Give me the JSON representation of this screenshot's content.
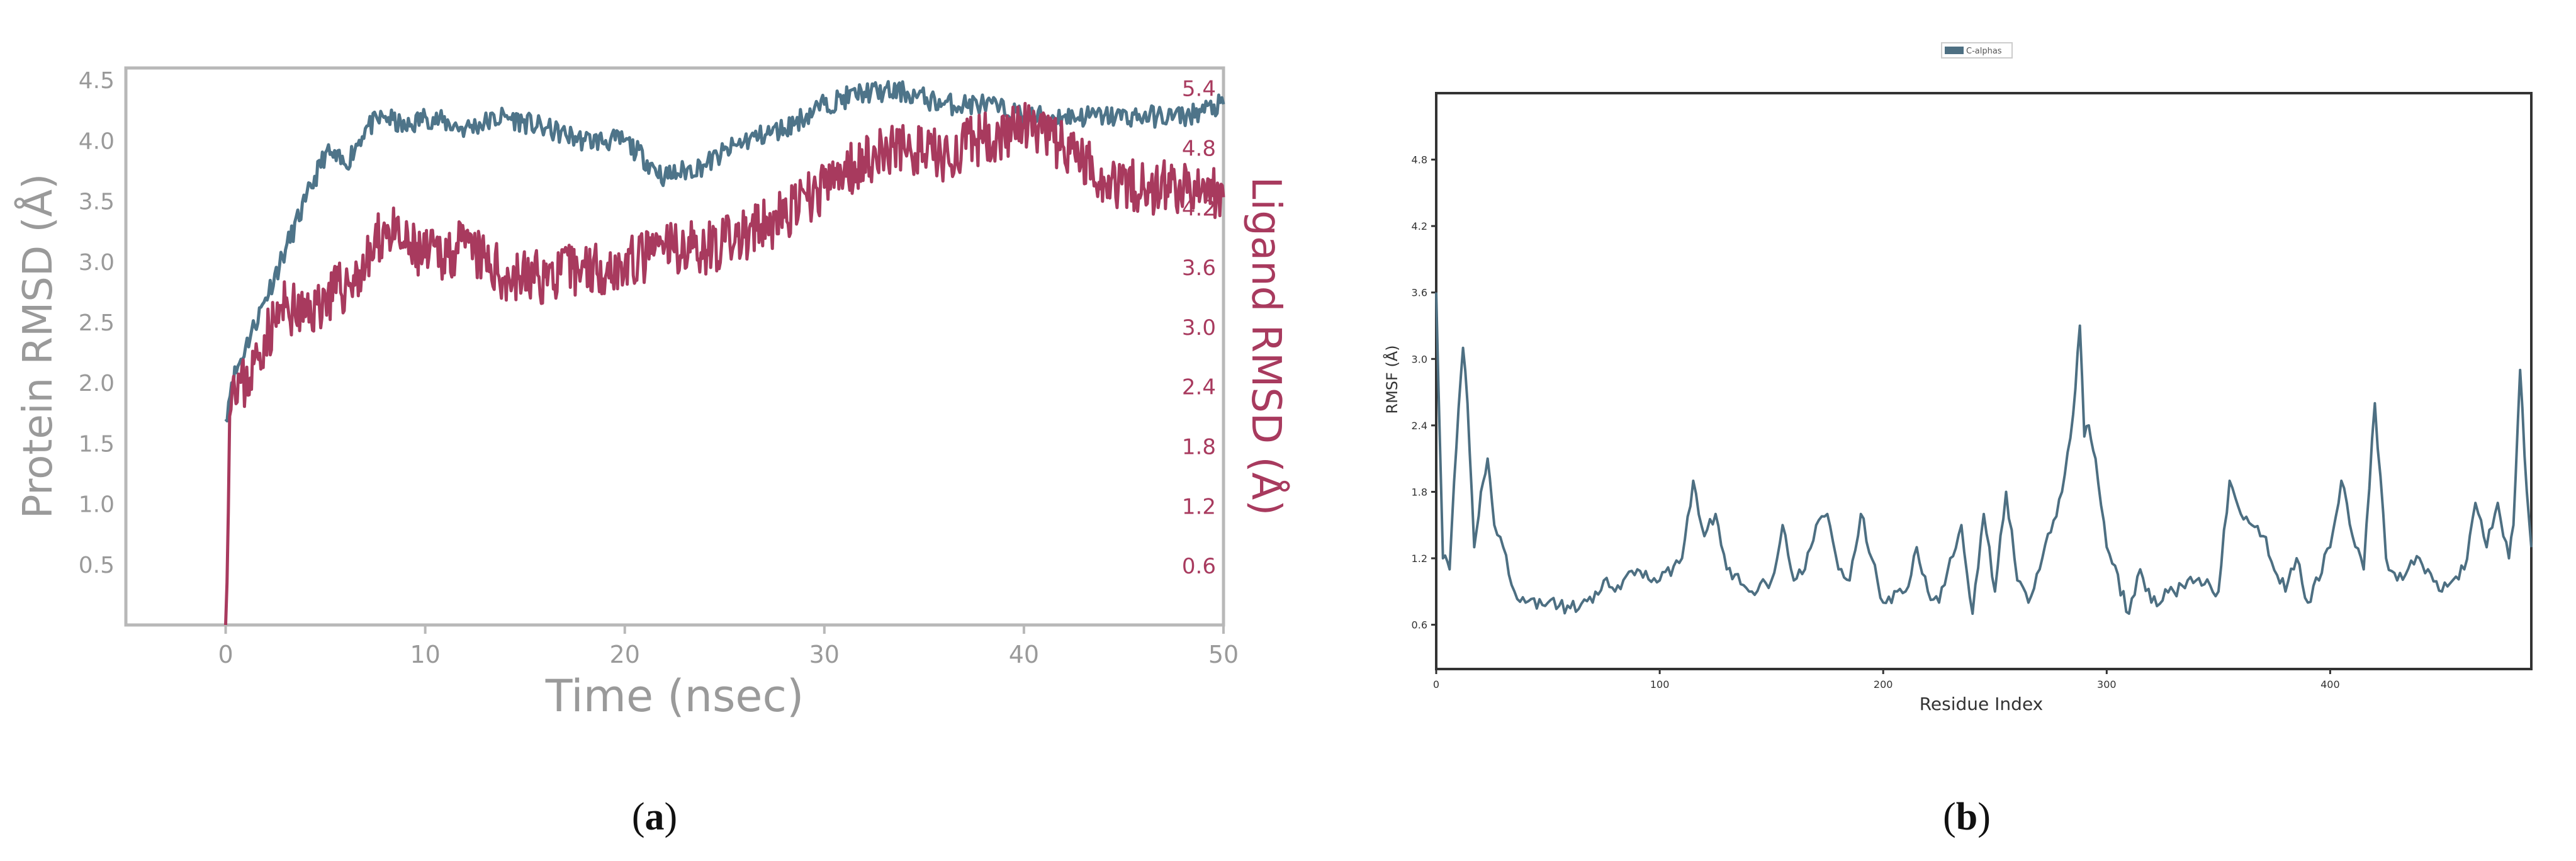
{
  "colors": {
    "protein": "#4e7489",
    "ligand": "#a83a5e",
    "rmsf": "#4d6f82",
    "gray_text": "#9a9a9a",
    "axis": "#b8b8b8",
    "frame": "#333333"
  },
  "panel_a": {
    "label_open": "(",
    "label_letter": "a",
    "label_close": ")"
  },
  "panel_b": {
    "label_open": "(",
    "label_letter": "b",
    "label_close": ")"
  },
  "chart_data": [
    {
      "type": "line",
      "xlabel": "Time (nsec)",
      "ylabel": "Protein RMSD (Å)",
      "y2label": "Ligand RMSD (Å)",
      "xlim": [
        -5,
        50
      ],
      "ylim": [
        0,
        4.6
      ],
      "y2lim": [
        0,
        5.6
      ],
      "xticks": [
        0,
        10,
        20,
        30,
        40,
        50
      ],
      "xtick_labels": [
        "0",
        "10",
        "20",
        "30",
        "40",
        "50"
      ],
      "yticks": [
        0.5,
        1.0,
        1.5,
        2.0,
        2.5,
        3.0,
        3.5,
        4.0,
        4.5
      ],
      "ytick_labels": [
        "0.5",
        "1.0",
        "1.5",
        "2.0",
        "2.5",
        "3.0",
        "3.5",
        "4.0",
        "4.5"
      ],
      "y2ticks": [
        0.6,
        1.2,
        1.8,
        2.4,
        3.0,
        3.6,
        4.2,
        4.8,
        5.4
      ],
      "y2tick_labels": [
        "0.6",
        "1.2",
        "1.8",
        "2.4",
        "3.0",
        "3.6",
        "4.2",
        "4.8",
        "5.4"
      ],
      "grid": false,
      "series": [
        {
          "axis": "left",
          "x": [
            0,
            0.3,
            1,
            2,
            3,
            4,
            5,
            6,
            7,
            8,
            9,
            10,
            12,
            14,
            16,
            18,
            20,
            22,
            24,
            26,
            28,
            30,
            32,
            34,
            36,
            38,
            40,
            42,
            44,
            46,
            48,
            50
          ],
          "values": [
            1.7,
            2.0,
            2.3,
            2.7,
            3.1,
            3.5,
            3.9,
            3.8,
            4.1,
            4.2,
            4.1,
            4.2,
            4.1,
            4.2,
            4.1,
            4.0,
            4.0,
            3.7,
            3.8,
            4.0,
            4.1,
            4.3,
            4.4,
            4.4,
            4.3,
            4.3,
            4.2,
            4.2,
            4.2,
            4.2,
            4.2,
            4.3
          ]
        },
        {
          "axis": "right",
          "x": [
            0,
            0.2,
            0.4,
            1,
            2,
            3,
            4,
            5,
            6,
            7,
            8,
            9,
            10,
            12,
            14,
            16,
            18,
            20,
            22,
            24,
            26,
            28,
            30,
            32,
            34,
            36,
            38,
            40,
            42,
            44,
            46,
            48,
            50
          ],
          "values": [
            0.0,
            2.1,
            2.5,
            2.4,
            2.9,
            3.2,
            3.1,
            3.3,
            3.4,
            3.6,
            4.0,
            3.8,
            3.7,
            3.8,
            3.5,
            3.5,
            3.6,
            3.6,
            3.8,
            3.8,
            3.9,
            4.1,
            4.4,
            4.7,
            4.8,
            4.7,
            4.9,
            5.0,
            4.8,
            4.5,
            4.4,
            4.4,
            4.3
          ]
        }
      ]
    },
    {
      "type": "line",
      "xlabel": "Residue Index",
      "ylabel": "RMSF (Å)",
      "legend_entry": "C-alphas",
      "legend_position": "top-center",
      "xlim": [
        0,
        490
      ],
      "ylim": [
        0.2,
        5.4
      ],
      "xticks": [
        0,
        100,
        200,
        300,
        400
      ],
      "xtick_labels": [
        "0",
        "100",
        "200",
        "300",
        "400"
      ],
      "yticks": [
        0.6,
        1.2,
        1.8,
        2.4,
        3.0,
        3.6,
        4.2,
        4.8
      ],
      "ytick_labels": [
        "0.6",
        "1.2",
        "1.8",
        "2.4",
        "3.0",
        "3.6",
        "4.2",
        "4.8"
      ],
      "grid": false,
      "x": [
        0,
        3,
        6,
        9,
        12,
        14,
        17,
        20,
        23,
        26,
        30,
        35,
        40,
        50,
        60,
        70,
        75,
        80,
        90,
        100,
        110,
        115,
        120,
        125,
        130,
        140,
        150,
        155,
        160,
        165,
        170,
        175,
        180,
        185,
        190,
        200,
        210,
        215,
        220,
        225,
        230,
        235,
        240,
        245,
        250,
        255,
        260,
        265,
        270,
        280,
        285,
        288,
        290,
        292,
        295,
        300,
        310,
        315,
        320,
        330,
        340,
        350,
        355,
        360,
        365,
        370,
        380,
        385,
        390,
        400,
        405,
        410,
        415,
        420,
        425,
        430,
        440,
        450,
        460,
        465,
        470,
        475,
        480,
        482,
        485,
        488,
        490
      ],
      "values": [
        3.6,
        1.2,
        1.1,
        2.2,
        3.1,
        2.6,
        1.3,
        1.8,
        2.1,
        1.5,
        1.3,
        0.9,
        0.8,
        0.8,
        0.75,
        0.8,
        1.0,
        0.9,
        1.1,
        1.0,
        1.2,
        1.9,
        1.4,
        1.6,
        1.1,
        0.9,
        1.0,
        1.5,
        1.0,
        1.1,
        1.5,
        1.6,
        1.1,
        1.0,
        1.6,
        0.8,
        0.9,
        1.3,
        0.9,
        0.8,
        1.2,
        1.5,
        0.7,
        1.6,
        0.9,
        1.8,
        1.0,
        0.8,
        1.1,
        1.8,
        2.5,
        3.3,
        2.3,
        2.4,
        2.1,
        1.3,
        0.7,
        1.1,
        0.8,
        0.9,
        1.0,
        0.9,
        1.9,
        1.6,
        1.5,
        1.4,
        0.9,
        1.2,
        0.8,
        1.3,
        1.9,
        1.4,
        1.1,
        2.6,
        1.2,
        1.0,
        1.2,
        0.9,
        1.1,
        1.7,
        1.3,
        1.7,
        1.2,
        1.5,
        2.9,
        1.8,
        1.3
      ]
    }
  ]
}
